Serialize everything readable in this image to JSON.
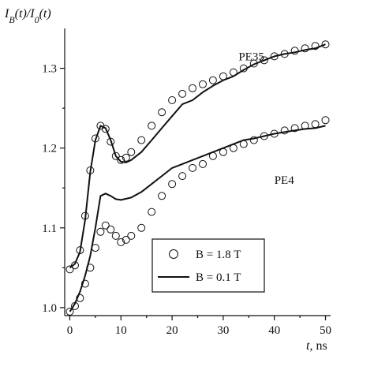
{
  "chart_data": {
    "type": "scatter",
    "ylabel": "I_B(t)/I_0(t)",
    "xlabel": "t, ns",
    "xlim": [
      -1,
      51
    ],
    "ylim": [
      0.99,
      1.35
    ],
    "xticks": [
      0,
      10,
      20,
      30,
      40,
      50
    ],
    "yticks": [
      1.0,
      1.1,
      1.2,
      1.3
    ],
    "x_tick_labels": [
      "0",
      "10",
      "20",
      "30",
      "40",
      "50"
    ],
    "y_tick_labels": [
      "1.0",
      "1.1",
      "1.2",
      "1.3"
    ],
    "grid": false,
    "legend_position": "bottom-right",
    "annotations": [
      {
        "text": "PE35",
        "x": 33,
        "y": 1.31
      },
      {
        "text": "PE4",
        "x": 40,
        "y": 1.155
      }
    ],
    "legend": [
      {
        "symbol": "circle",
        "label": "B = 1.8 T"
      },
      {
        "symbol": "line",
        "label": "B = 0.1 T"
      }
    ],
    "series": [
      {
        "name": "PE35",
        "field": "B = 0.1 T",
        "style": "line",
        "x": [
          0,
          1,
          2,
          3,
          4,
          5,
          6,
          7,
          8,
          9,
          10,
          11,
          12,
          14,
          16,
          18,
          20,
          22,
          24,
          26,
          28,
          30,
          32,
          34,
          36,
          38,
          40,
          42,
          44,
          46,
          48,
          50
        ],
        "y": [
          1.05,
          1.055,
          1.07,
          1.11,
          1.17,
          1.21,
          1.228,
          1.225,
          1.21,
          1.19,
          1.183,
          1.182,
          1.185,
          1.195,
          1.21,
          1.225,
          1.24,
          1.255,
          1.26,
          1.27,
          1.278,
          1.285,
          1.29,
          1.298,
          1.305,
          1.31,
          1.315,
          1.318,
          1.32,
          1.323,
          1.325,
          1.33
        ]
      },
      {
        "name": "PE35",
        "field": "B = 1.8 T",
        "style": "circle",
        "x": [
          0,
          1,
          2,
          3,
          4,
          5,
          6,
          7,
          8,
          9,
          10,
          11,
          12,
          14,
          16,
          18,
          20,
          22,
          24,
          26,
          28,
          30,
          32,
          34,
          36,
          38,
          40,
          42,
          44,
          46,
          48,
          50
        ],
        "y": [
          1.048,
          1.053,
          1.072,
          1.115,
          1.172,
          1.212,
          1.228,
          1.224,
          1.208,
          1.19,
          1.185,
          1.188,
          1.195,
          1.21,
          1.228,
          1.245,
          1.26,
          1.268,
          1.275,
          1.28,
          1.285,
          1.29,
          1.295,
          1.3,
          1.306,
          1.31,
          1.315,
          1.318,
          1.322,
          1.325,
          1.328,
          1.33
        ]
      },
      {
        "name": "PE4",
        "field": "B = 0.1 T",
        "style": "line",
        "x": [
          0,
          1,
          2,
          3,
          4,
          5,
          6,
          7,
          8,
          9,
          10,
          12,
          14,
          16,
          18,
          20,
          22,
          24,
          26,
          28,
          30,
          32,
          34,
          36,
          38,
          40,
          42,
          44,
          46,
          48,
          50
        ],
        "y": [
          0.995,
          1.005,
          1.02,
          1.04,
          1.065,
          1.1,
          1.14,
          1.143,
          1.14,
          1.136,
          1.135,
          1.138,
          1.145,
          1.155,
          1.165,
          1.175,
          1.18,
          1.185,
          1.19,
          1.195,
          1.2,
          1.205,
          1.21,
          1.212,
          1.215,
          1.218,
          1.22,
          1.222,
          1.224,
          1.225,
          1.228
        ]
      },
      {
        "name": "PE4",
        "field": "B = 1.8 T",
        "style": "circle",
        "x": [
          0,
          1,
          2,
          3,
          4,
          5,
          6,
          7,
          8,
          9,
          10,
          11,
          12,
          14,
          16,
          18,
          20,
          22,
          24,
          26,
          28,
          30,
          32,
          34,
          36,
          38,
          40,
          42,
          44,
          46,
          48,
          50
        ],
        "y": [
          0.995,
          1.002,
          1.012,
          1.03,
          1.05,
          1.075,
          1.095,
          1.103,
          1.098,
          1.09,
          1.082,
          1.085,
          1.09,
          1.1,
          1.12,
          1.14,
          1.155,
          1.165,
          1.175,
          1.18,
          1.19,
          1.195,
          1.2,
          1.205,
          1.21,
          1.215,
          1.218,
          1.222,
          1.225,
          1.228,
          1.23,
          1.235
        ]
      }
    ]
  }
}
